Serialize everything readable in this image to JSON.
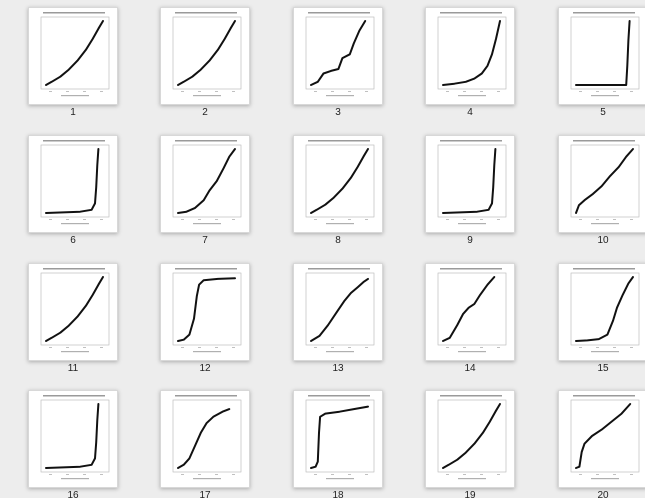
{
  "thumbnails": [
    {
      "label": "1",
      "curve": "convex_steady"
    },
    {
      "label": "2",
      "curve": "convex_steady"
    },
    {
      "label": "3",
      "curve": "stepped"
    },
    {
      "label": "4",
      "curve": "convex_late"
    },
    {
      "label": "5",
      "curve": "vertical_right"
    },
    {
      "label": "6",
      "curve": "flat_then_spike"
    },
    {
      "label": "7",
      "curve": "convex_mid"
    },
    {
      "label": "8",
      "curve": "convex_steady"
    },
    {
      "label": "9",
      "curve": "flat_then_spike"
    },
    {
      "label": "10",
      "curve": "s_curve_early"
    },
    {
      "label": "11",
      "curve": "convex_steady"
    },
    {
      "label": "12",
      "curve": "sigmoid_plateau"
    },
    {
      "label": "13",
      "curve": "concave_rise"
    },
    {
      "label": "14",
      "curve": "double_rise"
    },
    {
      "label": "15",
      "curve": "late_rise"
    },
    {
      "label": "16",
      "curve": "flat_then_spike"
    },
    {
      "label": "17",
      "curve": "s_curve"
    },
    {
      "label": "18",
      "curve": "jump_then_flat"
    },
    {
      "label": "19",
      "curve": "convex_steady"
    },
    {
      "label": "20",
      "curve": "jump_then_linear"
    }
  ]
}
